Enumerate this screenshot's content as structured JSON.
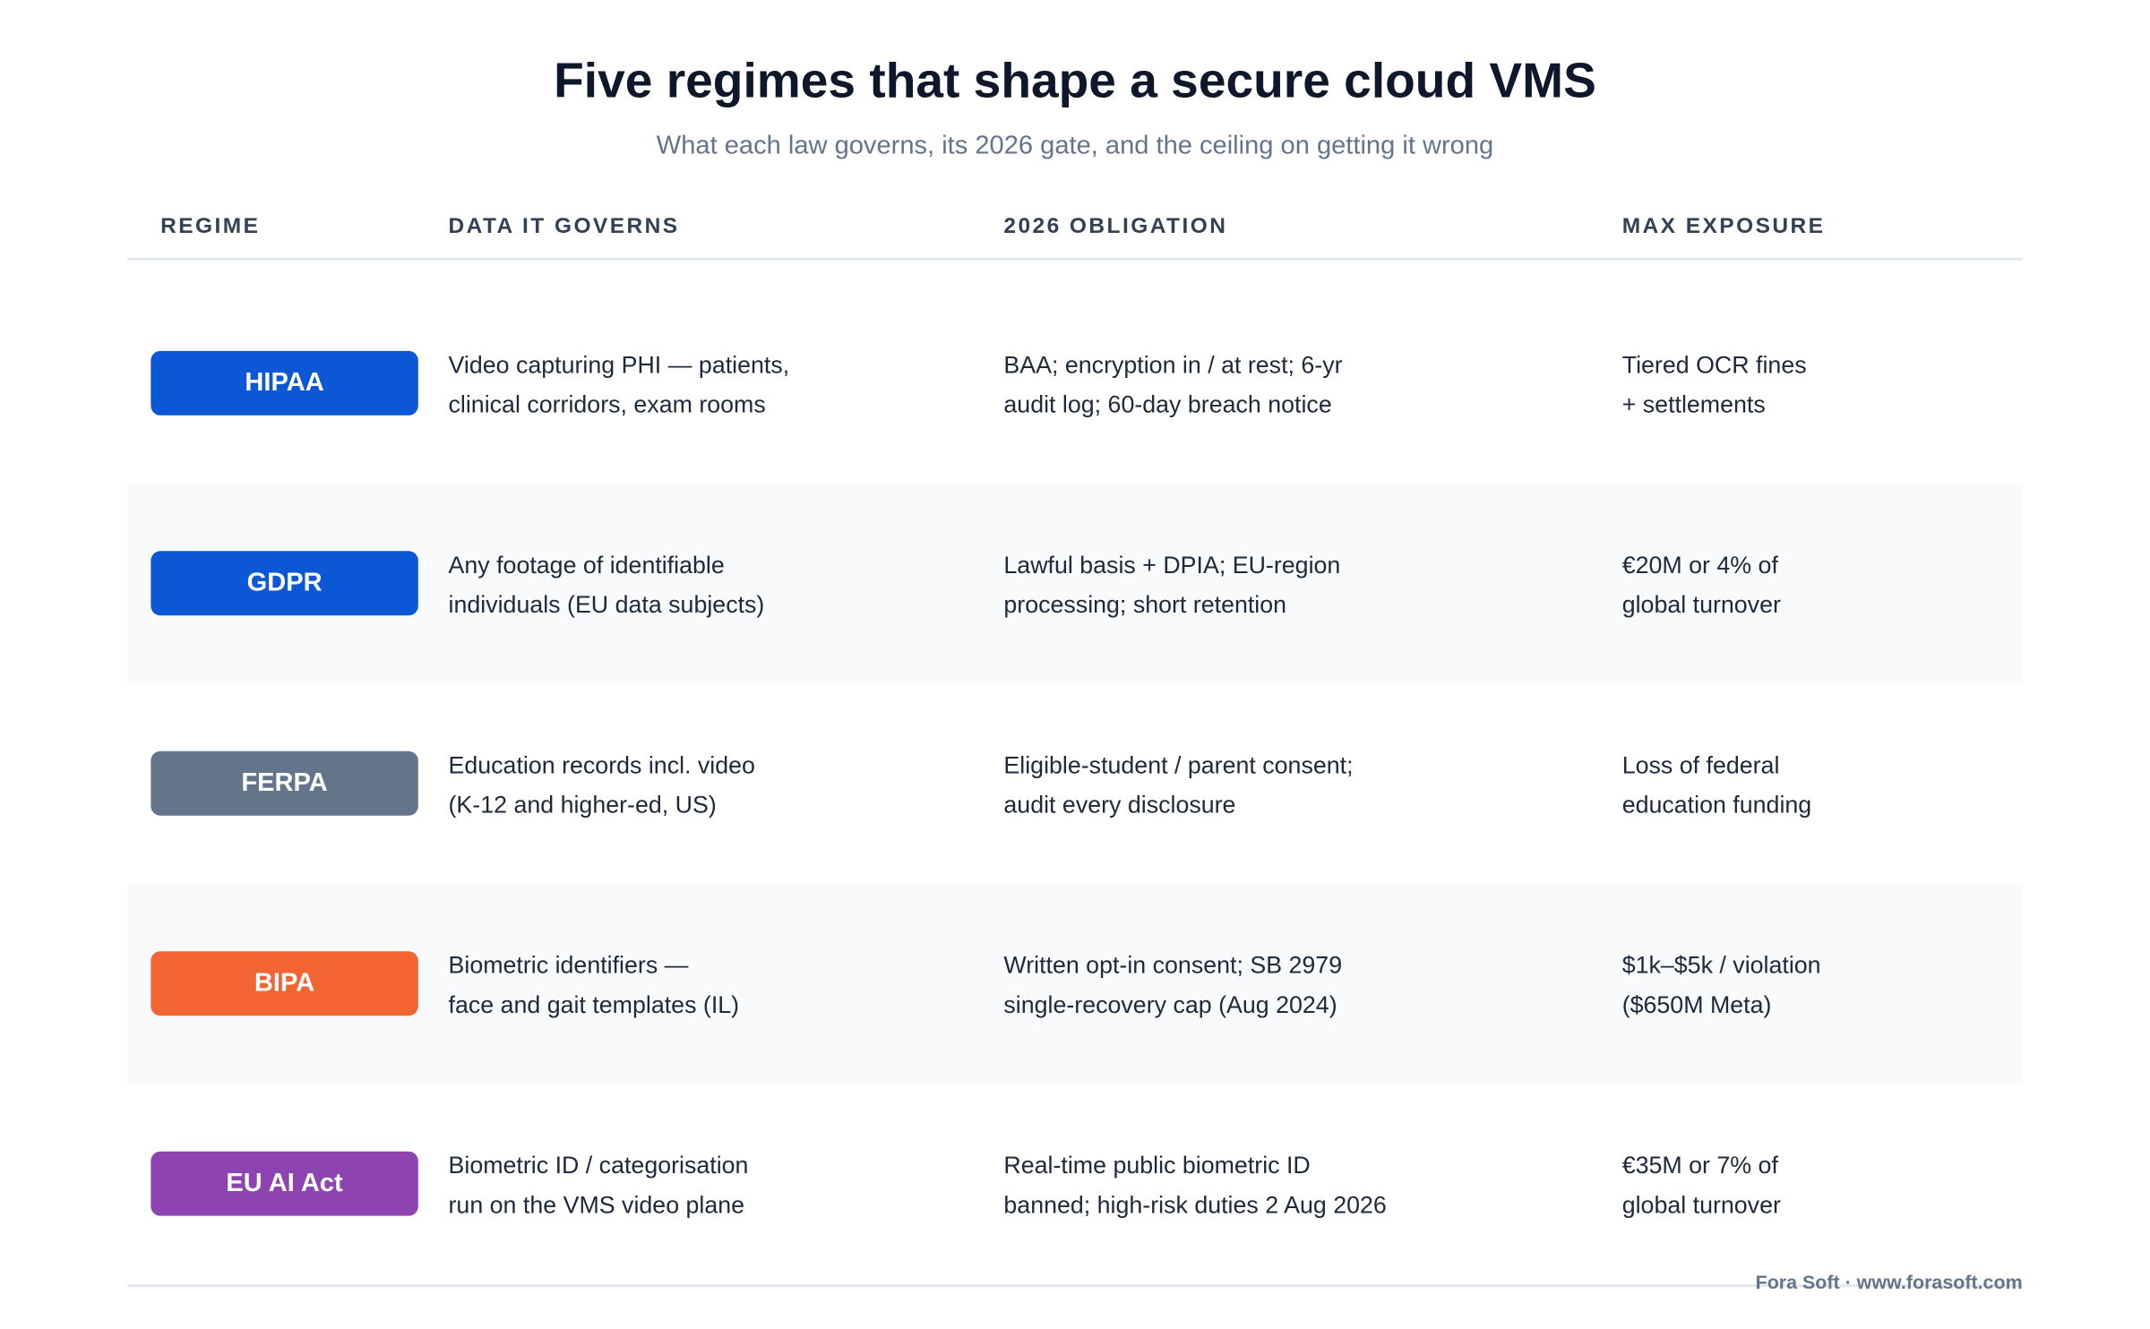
{
  "header": {
    "title": "Five regimes that shape a secure cloud VMS",
    "subtitle": "What each law governs, its 2026 gate, and the ceiling on getting it wrong"
  },
  "table": {
    "columns": [
      "REGIME",
      "DATA IT GOVERNS",
      "2026 OBLIGATION",
      "MAX EXPOSURE"
    ],
    "rows": [
      {
        "regime": "HIPAA",
        "color": "#0b57d6",
        "governs": [
          "Video capturing PHI — patients,",
          "clinical corridors, exam rooms"
        ],
        "obligation": [
          "BAA; encryption in / at rest; 6-yr",
          "audit log; 60-day breach notice"
        ],
        "exposure": [
          "Tiered OCR fines",
          "+ settlements"
        ]
      },
      {
        "regime": "GDPR",
        "color": "#0b57d6",
        "governs": [
          "Any footage of identifiable",
          "individuals (EU data subjects)"
        ],
        "obligation": [
          "Lawful basis + DPIA; EU-region",
          "processing; short retention"
        ],
        "exposure": [
          "€20M or 4% of",
          "global turnover"
        ]
      },
      {
        "regime": "FERPA",
        "color": "#64748b",
        "governs": [
          "Education records incl. video",
          "(K-12 and higher-ed, US)"
        ],
        "obligation": [
          "Eligible-student / parent consent;",
          "audit every disclosure"
        ],
        "exposure": [
          "Loss of federal",
          "education funding"
        ]
      },
      {
        "regime": "BIPA",
        "color": "#f26533",
        "governs": [
          "Biometric identifiers —",
          "face and gait templates (IL)"
        ],
        "obligation": [
          "Written opt-in consent; SB 2979",
          "single-recovery cap (Aug 2024)"
        ],
        "exposure": [
          "$1k–$5k / violation",
          "($650M Meta)"
        ]
      },
      {
        "regime": "EU AI Act",
        "color": "#8e44b0",
        "governs": [
          "Biometric ID / categorisation",
          "run on the VMS video plane"
        ],
        "obligation": [
          "Real-time public biometric ID",
          "banned; high-risk duties 2 Aug 2026"
        ],
        "exposure": [
          "€35M or 7% of",
          "global turnover"
        ]
      }
    ]
  },
  "footer": "Fora Soft · www.forasoft.com"
}
